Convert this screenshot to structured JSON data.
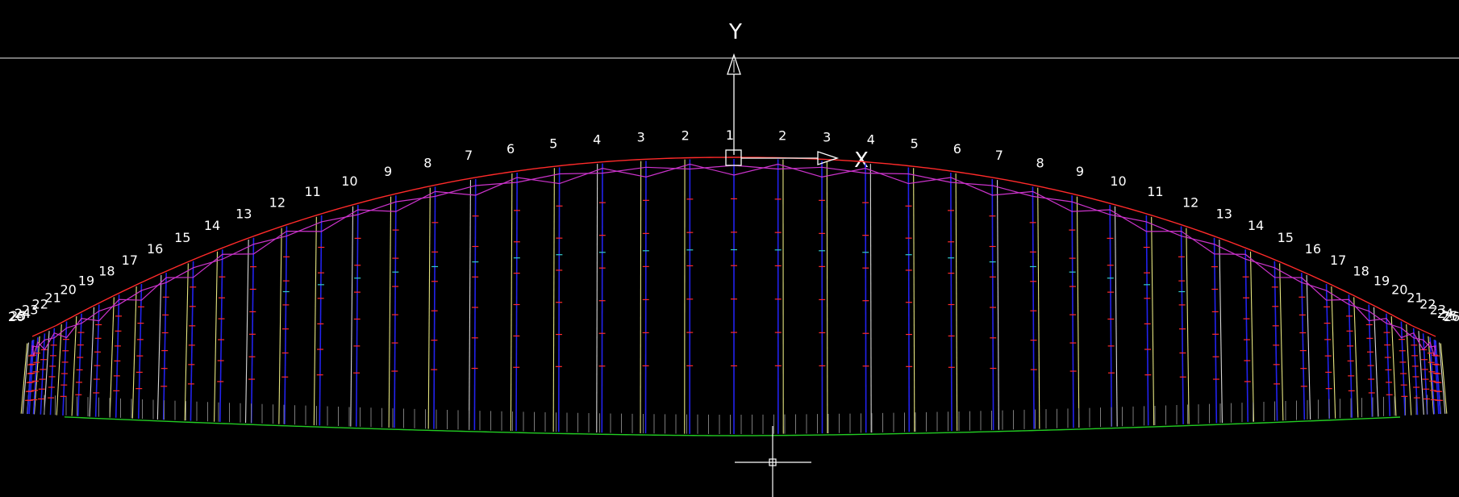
{
  "view": {
    "title": "",
    "background": "#000000"
  },
  "ucs": {
    "x_label": "X",
    "y_label": "Y",
    "axis_color": "#ffffff"
  },
  "colors": {
    "leading_edge": "#ff2a2a",
    "trailing_edge": "#22cc22",
    "diagonal_line": "#cc33cc",
    "rib_blue": "#2222ee",
    "rib_yellow": "#e6e680",
    "rib_white": "#d8d8d8",
    "tick_red": "#ff2a2a",
    "tick_cyan": "#33cccc",
    "hairline_gray": "#8a8a8a",
    "crosshair": "#ffffff"
  },
  "rib_labels": {
    "left": [
      "1",
      "2",
      "3",
      "4",
      "5",
      "6",
      "7",
      "8",
      "9",
      "10",
      "11",
      "12",
      "13",
      "14",
      "15",
      "16",
      "17",
      "18",
      "19",
      "20",
      "21",
      "22",
      "23",
      "24",
      "25",
      "26"
    ],
    "right": [
      "2",
      "3",
      "4",
      "5",
      "6",
      "7",
      "8",
      "9",
      "10",
      "11",
      "12",
      "13",
      "14",
      "15",
      "16",
      "17",
      "18",
      "19",
      "20",
      "21",
      "22",
      "23",
      "24",
      "25",
      "26"
    ]
  },
  "cursor": {
    "type": "crosshair"
  }
}
